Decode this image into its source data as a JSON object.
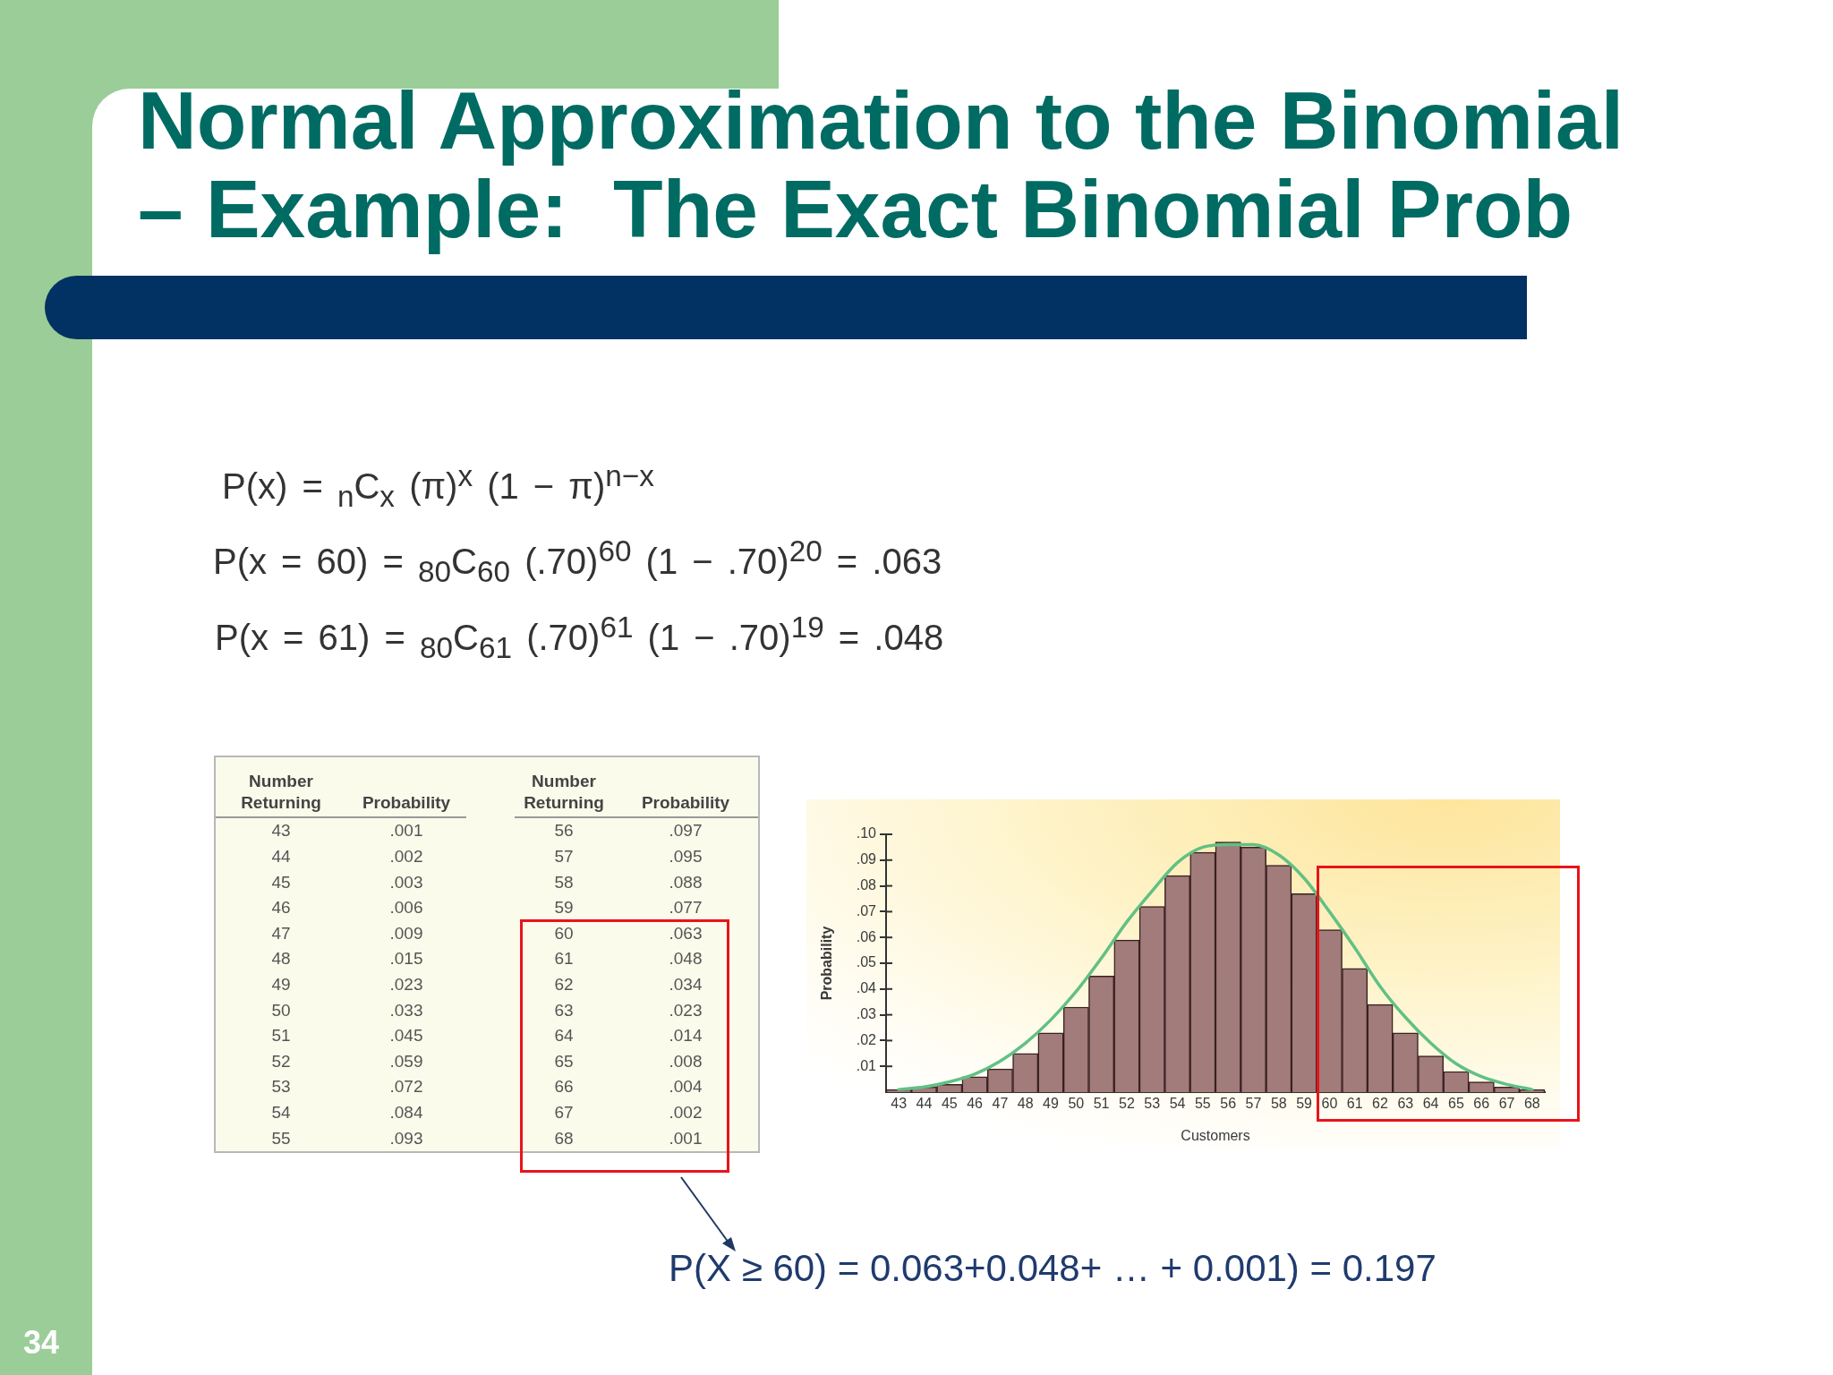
{
  "chart_data": {
    "type": "bar",
    "title": "Normal Approximation to the Binomial – Example:  The Exact Binomial Prob",
    "xlabel": "Customers",
    "ylabel": "Probability",
    "annotations": [
      "P(x) = $_{n}$C$_{x}$ (π)$^{x}$ (1 − π)$^{n−x}$",
      "P(x = 60) = $_{80}$C$_{60}$ (.70)$^{60}$ (1 − .70)$^{20}$ = .063",
      "P(x = 61) = $_{80}$C$_{61}$ (.70)$^{61}$ (1 − .70)$^{19}$ = .048",
      "Number Returning",
      "Probability",
      "P(X ≥ 60) = 0.063+0.048+ … + 0.001) = 0.197",
      "34",
      ".001",
      ".002",
      ".003",
      ".006",
      ".009",
      ".015",
      ".023",
      ".033",
      ".045",
      ".059",
      ".072",
      ".084",
      ".093",
      ".097",
      ".095",
      ".088",
      ".077",
      ".063",
      ".048",
      ".034",
      ".023",
      ".014",
      ".008",
      ".004",
      ".002",
      ".001"
    ],
    "categories": [
      "43",
      "44",
      "45",
      "46",
      "47",
      "48",
      "49",
      "50",
      "51",
      "52",
      "53",
      "54",
      "55",
      "56",
      "57",
      "58",
      "59",
      "60",
      "61",
      "62",
      "63",
      "64",
      "65",
      "66",
      "67",
      "68"
    ],
    "ylim": [
      0,
      0.1
    ],
    "yticks": [
      {
        "value": 0.01,
        "label": ".01"
      },
      {
        "value": 0.02,
        "label": ".02"
      },
      {
        "value": 0.03,
        "label": ".03"
      },
      {
        "value": 0.04,
        "label": ".04"
      },
      {
        "value": 0.05,
        "label": ".05"
      },
      {
        "value": 0.06,
        "label": ".06"
      },
      {
        "value": 0.07,
        "label": ".07"
      },
      {
        "value": 0.08,
        "label": ".08"
      },
      {
        "value": 0.09,
        "label": ".09"
      },
      {
        "value": 0.1,
        "label": ".10"
      }
    ],
    "series": [
      {
        "color": "#a27b7b",
        "values": [
          0.001,
          0.002,
          0.003,
          0.006,
          0.009,
          0.015,
          0.023,
          0.033,
          0.045,
          0.059,
          0.072,
          0.084,
          0.093,
          0.097,
          0.095,
          0.088,
          0.077,
          0.063,
          0.048,
          0.034,
          0.023,
          0.014,
          0.008,
          0.004,
          0.002,
          0.001
        ]
      },
      {
        "type": "line",
        "color": "#62c084",
        "values": [
          0.001,
          0.002,
          0.004,
          0.007,
          0.012,
          0.019,
          0.028,
          0.039,
          0.052,
          0.066,
          0.078,
          0.089,
          0.095,
          0.096,
          0.096,
          0.092,
          0.083,
          0.07,
          0.056,
          0.041,
          0.029,
          0.019,
          0.011,
          0.006,
          0.003,
          0.001
        ]
      }
    ]
  }
}
